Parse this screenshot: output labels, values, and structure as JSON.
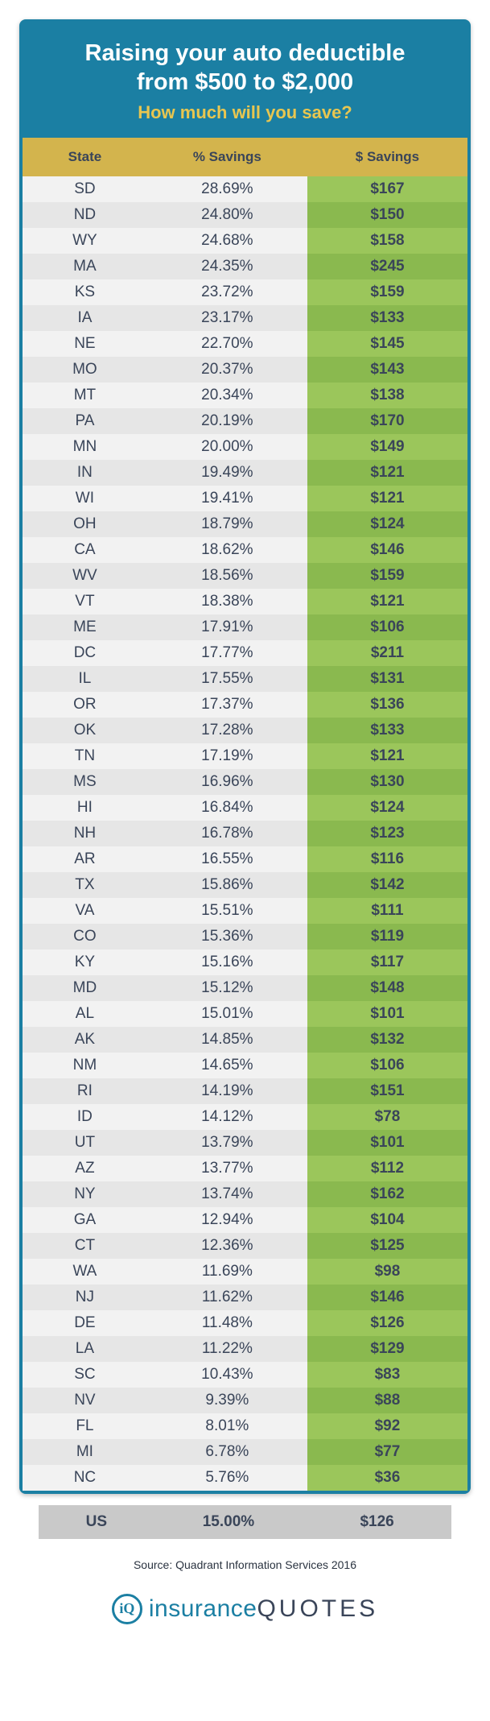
{
  "header": {
    "title_l1": "Raising your auto deductible",
    "title_l2": "from $500 to $2,000",
    "sub": "How much will you save?"
  },
  "cols": {
    "state": "State",
    "pct": "% Savings",
    "dol": "$ Savings"
  },
  "col_widths": [
    "28%",
    "36%",
    "36%"
  ],
  "colors": {
    "card_bg": "#1b7fa3",
    "header_bar": "#d3b44d",
    "row_odd": "#f2f2f2",
    "row_even": "#e6e6e6",
    "sav_odd": "#9bc65b",
    "sav_even": "#8ab94f",
    "accent": "#e8c650",
    "text": "#3a4559",
    "us_bg": "#c9c9c9"
  },
  "fonts": {
    "title": 29,
    "sub": 22,
    "th": 17,
    "td": 19,
    "src": 14,
    "brand": 30
  },
  "rows": [
    {
      "s": "SD",
      "p": "28.69%",
      "d": "$167"
    },
    {
      "s": "ND",
      "p": "24.80%",
      "d": "$150"
    },
    {
      "s": "WY",
      "p": "24.68%",
      "d": "$158"
    },
    {
      "s": "MA",
      "p": "24.35%",
      "d": "$245"
    },
    {
      "s": "KS",
      "p": "23.72%",
      "d": "$159"
    },
    {
      "s": "IA",
      "p": "23.17%",
      "d": "$133"
    },
    {
      "s": "NE",
      "p": "22.70%",
      "d": "$145"
    },
    {
      "s": "MO",
      "p": "20.37%",
      "d": "$143"
    },
    {
      "s": "MT",
      "p": "20.34%",
      "d": "$138"
    },
    {
      "s": "PA",
      "p": "20.19%",
      "d": "$170"
    },
    {
      "s": "MN",
      "p": "20.00%",
      "d": "$149"
    },
    {
      "s": "IN",
      "p": "19.49%",
      "d": "$121"
    },
    {
      "s": "WI",
      "p": "19.41%",
      "d": "$121"
    },
    {
      "s": "OH",
      "p": "18.79%",
      "d": "$124"
    },
    {
      "s": "CA",
      "p": "18.62%",
      "d": "$146"
    },
    {
      "s": "WV",
      "p": "18.56%",
      "d": "$159"
    },
    {
      "s": "VT",
      "p": "18.38%",
      "d": "$121"
    },
    {
      "s": "ME",
      "p": "17.91%",
      "d": "$106"
    },
    {
      "s": "DC",
      "p": "17.77%",
      "d": "$211"
    },
    {
      "s": "IL",
      "p": "17.55%",
      "d": "$131"
    },
    {
      "s": "OR",
      "p": "17.37%",
      "d": "$136"
    },
    {
      "s": "OK",
      "p": "17.28%",
      "d": "$133"
    },
    {
      "s": "TN",
      "p": "17.19%",
      "d": "$121"
    },
    {
      "s": "MS",
      "p": "16.96%",
      "d": "$130"
    },
    {
      "s": "HI",
      "p": "16.84%",
      "d": "$124"
    },
    {
      "s": "NH",
      "p": "16.78%",
      "d": "$123"
    },
    {
      "s": "AR",
      "p": "16.55%",
      "d": "$116"
    },
    {
      "s": "TX",
      "p": "15.86%",
      "d": "$142"
    },
    {
      "s": "VA",
      "p": "15.51%",
      "d": "$111"
    },
    {
      "s": "CO",
      "p": "15.36%",
      "d": "$119"
    },
    {
      "s": "KY",
      "p": "15.16%",
      "d": "$117"
    },
    {
      "s": "MD",
      "p": "15.12%",
      "d": "$148"
    },
    {
      "s": "AL",
      "p": "15.01%",
      "d": "$101"
    },
    {
      "s": "AK",
      "p": "14.85%",
      "d": "$132"
    },
    {
      "s": "NM",
      "p": "14.65%",
      "d": "$106"
    },
    {
      "s": "RI",
      "p": "14.19%",
      "d": "$151"
    },
    {
      "s": "ID",
      "p": "14.12%",
      "d": "$78"
    },
    {
      "s": "UT",
      "p": "13.79%",
      "d": "$101"
    },
    {
      "s": "AZ",
      "p": "13.77%",
      "d": "$112"
    },
    {
      "s": "NY",
      "p": "13.74%",
      "d": "$162"
    },
    {
      "s": "GA",
      "p": "12.94%",
      "d": "$104"
    },
    {
      "s": "CT",
      "p": "12.36%",
      "d": "$125"
    },
    {
      "s": "WA",
      "p": "11.69%",
      "d": "$98"
    },
    {
      "s": "NJ",
      "p": "11.62%",
      "d": "$146"
    },
    {
      "s": "DE",
      "p": "11.48%",
      "d": "$126"
    },
    {
      "s": "LA",
      "p": "11.22%",
      "d": "$129"
    },
    {
      "s": "SC",
      "p": "10.43%",
      "d": "$83"
    },
    {
      "s": "NV",
      "p": "9.39%",
      "d": "$88"
    },
    {
      "s": "FL",
      "p": "8.01%",
      "d": "$92"
    },
    {
      "s": "MI",
      "p": "6.78%",
      "d": "$77"
    },
    {
      "s": "NC",
      "p": "5.76%",
      "d": "$36"
    }
  ],
  "us": {
    "s": "US",
    "p": "15.00%",
    "d": "$126"
  },
  "source": "Source: Quadrant Information Services 2016",
  "logo": {
    "mark": "iQ",
    "w1": "insurance",
    "w2": "QUOTES"
  }
}
